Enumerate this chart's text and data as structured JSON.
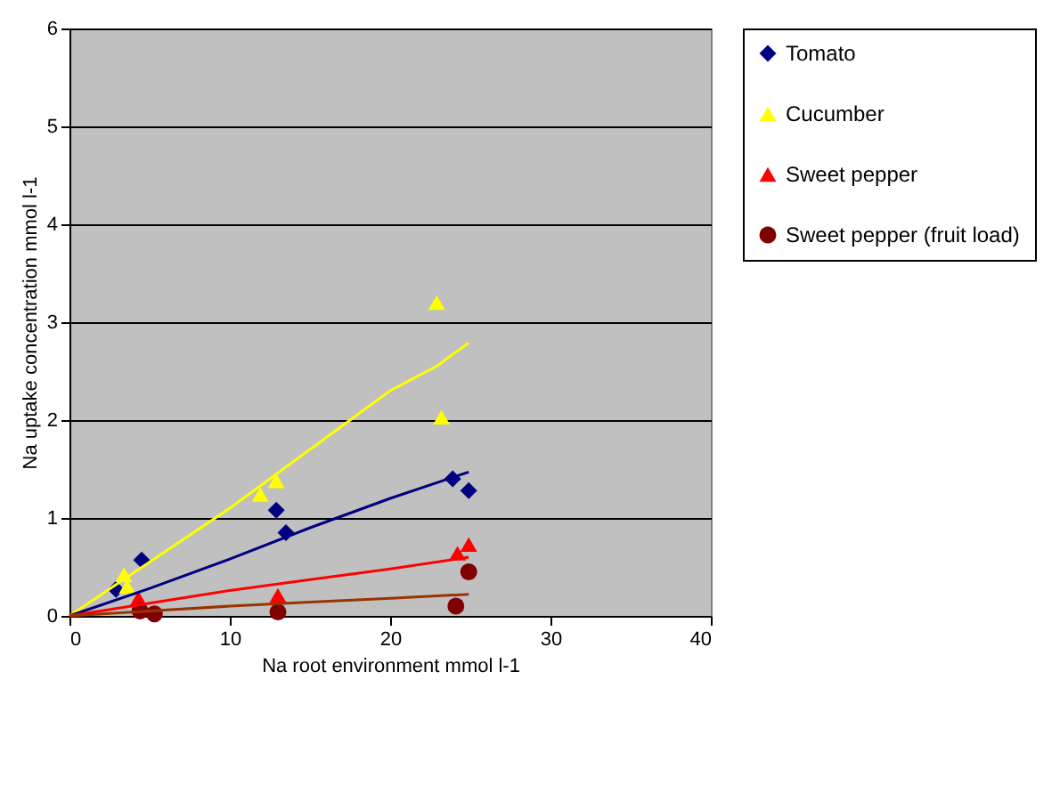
{
  "chart_data": {
    "type": "scatter",
    "xlabel": "Na root environment mmol l-1",
    "ylabel": "Na uptake concentration mmol l-1",
    "xlim": [
      0,
      40
    ],
    "xticks": [
      0,
      10,
      20,
      30,
      40
    ],
    "ylim": [
      0,
      6
    ],
    "yticks": [
      0,
      1,
      2,
      3,
      4,
      5,
      6
    ],
    "grid": "y",
    "legend": "right",
    "series": [
      {
        "name": "Tomato",
        "color": "#000080",
        "marker": "diamond",
        "x": [
          2.9,
          4.5,
          12.9,
          13.5,
          23.9,
          24.9
        ],
        "values": [
          0.27,
          0.57,
          1.08,
          0.85,
          1.4,
          1.28
        ]
      },
      {
        "name": "Cucumber",
        "color": "#ffff00",
        "marker": "triangle",
        "x": [
          3.4,
          3.6,
          11.9,
          12.9,
          22.9,
          23.2
        ],
        "values": [
          0.42,
          0.3,
          1.24,
          1.38,
          3.2,
          2.03
        ]
      },
      {
        "name": "Sweet pepper",
        "color": "#ff0000",
        "marker": "triangle",
        "x": [
          4.3,
          13.0,
          24.2,
          24.9
        ],
        "values": [
          0.18,
          0.21,
          0.64,
          0.73
        ]
      },
      {
        "name": "Sweet pepper (fruit load)",
        "color": "#800000",
        "marker": "circle",
        "x": [
          4.4,
          5.3,
          13.0,
          24.1,
          24.9
        ],
        "values": [
          0.05,
          0.02,
          0.04,
          0.1,
          0.45
        ]
      },
      {
        "type": "line",
        "color": "#ffff00",
        "x": [
          0,
          5,
          10,
          15,
          20,
          22.9,
          24.9
        ],
        "values": [
          0,
          0.55,
          1.1,
          1.7,
          2.3,
          2.55,
          2.79
        ]
      },
      {
        "type": "line",
        "color": "#000080",
        "x": [
          0,
          5,
          10,
          15,
          20,
          24.9
        ],
        "values": [
          0,
          0.28,
          0.58,
          0.9,
          1.2,
          1.47
        ]
      },
      {
        "type": "line",
        "color": "#ff0000",
        "x": [
          0,
          5,
          10,
          15,
          20,
          24.9
        ],
        "values": [
          0,
          0.13,
          0.26,
          0.37,
          0.48,
          0.6
        ]
      },
      {
        "type": "line",
        "color": "#993300",
        "x": [
          0,
          5,
          10,
          15,
          20,
          24.9
        ],
        "values": [
          0,
          0.05,
          0.1,
          0.14,
          0.18,
          0.22
        ]
      }
    ]
  }
}
